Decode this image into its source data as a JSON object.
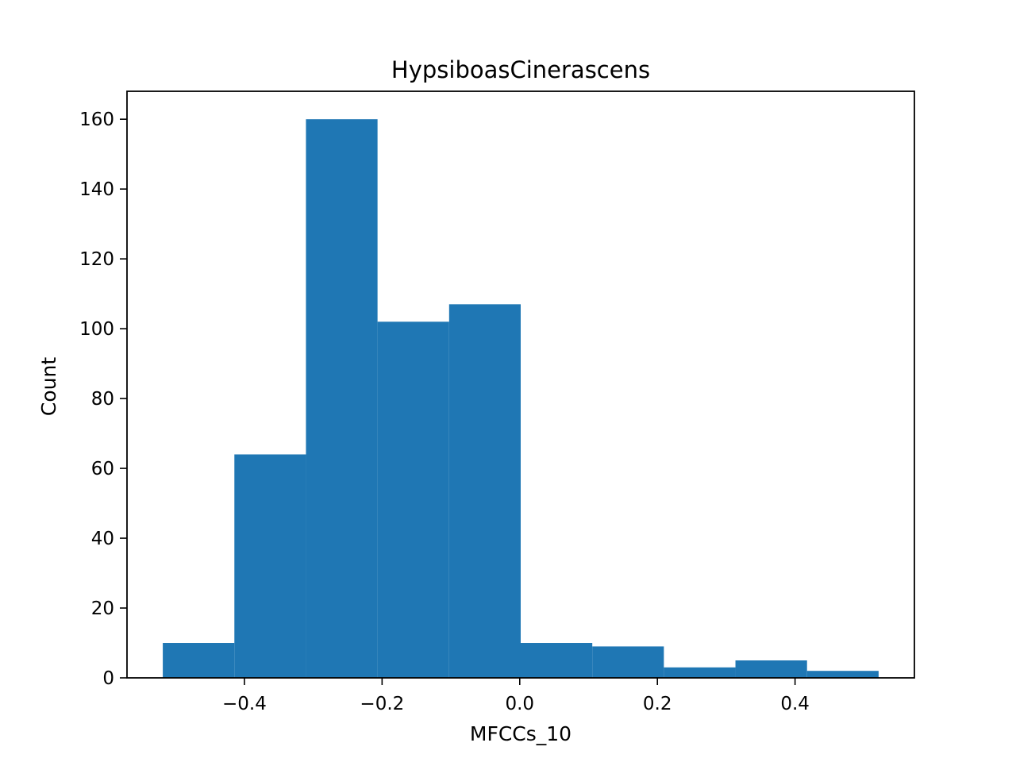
{
  "chart_data": {
    "type": "bar",
    "title": "HypsiboasCinerascens",
    "xlabel": "MFCCs_10",
    "ylabel": "Count",
    "bin_edges": [
      -0.5186,
      -0.4146,
      -0.3106,
      -0.2066,
      -0.1026,
      0.0014,
      0.1054,
      0.2094,
      0.3134,
      0.4174,
      0.5214
    ],
    "values": [
      10,
      64,
      160,
      102,
      107,
      10,
      9,
      3,
      5,
      2
    ],
    "xlim": [
      -0.5706,
      0.5734
    ],
    "ylim": [
      0,
      168
    ],
    "xticks": [
      -0.4,
      -0.2,
      0.0,
      0.2,
      0.4
    ],
    "xtick_labels": [
      "−0.4",
      "−0.2",
      "0.0",
      "0.2",
      "0.4"
    ],
    "yticks": [
      0,
      20,
      40,
      60,
      80,
      100,
      120,
      140,
      160
    ],
    "ytick_labels": [
      "0",
      "20",
      "40",
      "60",
      "80",
      "100",
      "120",
      "140",
      "160"
    ],
    "bar_color": "#1f77b4",
    "grid": false,
    "legend": "none"
  }
}
